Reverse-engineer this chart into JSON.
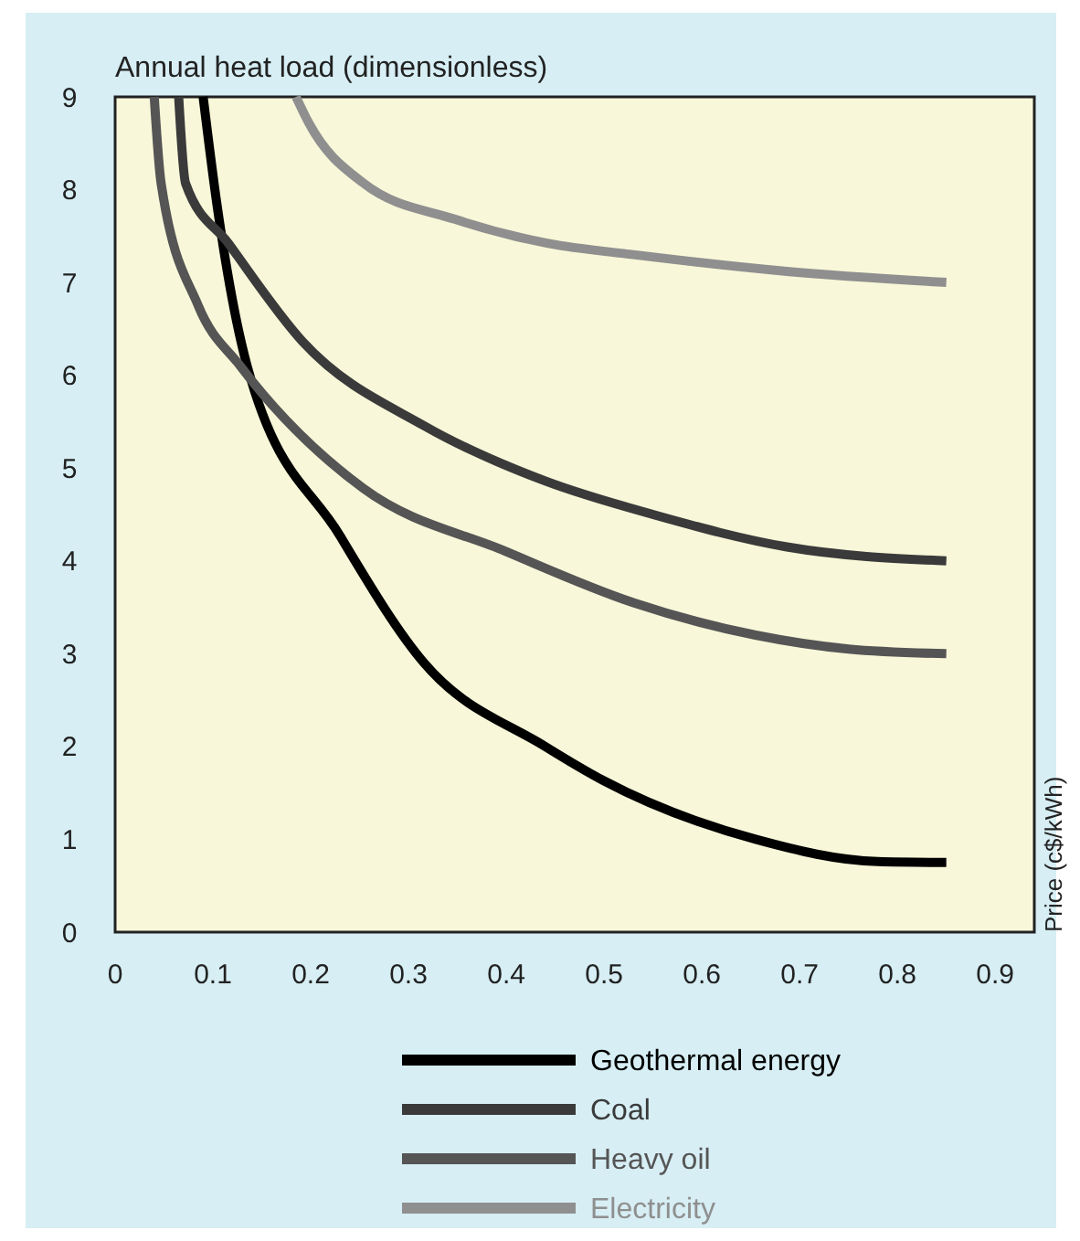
{
  "chart_data": {
    "type": "line",
    "xlabel": "Annual heat load (dimensionless)",
    "ylabel": "Price (c$/kWh)",
    "xlim": [
      0,
      0.94
    ],
    "ylim": [
      0,
      9
    ],
    "xticks": [
      0,
      0.1,
      0.2,
      0.3,
      0.4,
      0.5,
      0.6,
      0.7,
      0.8,
      0.9
    ],
    "yticks": [
      0,
      1,
      2,
      3,
      4,
      5,
      6,
      7,
      8,
      9
    ],
    "grid": false,
    "legend": "bottom",
    "marker": "none",
    "line_style": "solid",
    "series": [
      {
        "name": "Geothermal energy",
        "color": "#000000",
        "x": [
          0.09,
          0.104,
          0.135,
          0.23,
          0.316,
          0.44,
          0.5,
          0.655,
          0.78,
          0.85
        ],
        "values": [
          9,
          7.85,
          6.1,
          4.27,
          2.9,
          2.0,
          1.63,
          1.0,
          0.76,
          0.75
        ]
      },
      {
        "name": "Coal",
        "color": "#3a3a3a",
        "x": [
          0.065,
          0.072,
          0.116,
          0.192,
          0.317,
          0.44,
          0.55,
          0.687,
          0.85
        ],
        "values": [
          9,
          8.07,
          7.42,
          6.36,
          5.45,
          4.86,
          4.5,
          4.15,
          4.0
        ]
      },
      {
        "name": "Heavy oil",
        "color": "#555555",
        "x": [
          0.04,
          0.047,
          0.085,
          0.128,
          0.254,
          0.4,
          0.53,
          0.655,
          0.75,
          0.85
        ],
        "values": [
          9,
          8.07,
          6.75,
          6.1,
          4.78,
          4.1,
          3.55,
          3.2,
          3.05,
          3.0
        ]
      },
      {
        "name": "Electricity",
        "color": "#8f8f8f",
        "x": [
          0.185,
          0.198,
          0.254,
          0.348,
          0.443,
          0.53,
          0.687,
          0.85
        ],
        "values": [
          9,
          8.72,
          8.07,
          7.68,
          7.42,
          7.3,
          7.12,
          7.0
        ]
      }
    ]
  }
}
